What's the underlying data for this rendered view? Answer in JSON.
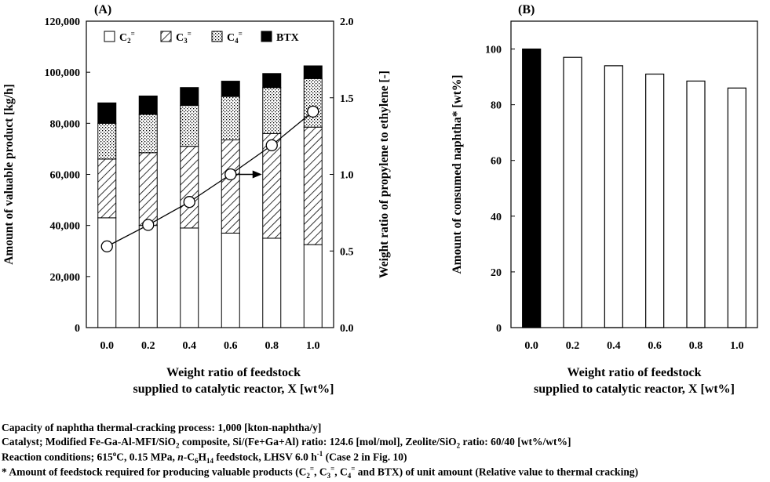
{
  "chart_data": [
    {
      "panel_label": "(A)",
      "type": "bar",
      "stacked": true,
      "categories": [
        "0.0",
        "0.2",
        "0.4",
        "0.6",
        "0.8",
        "1.0"
      ],
      "series": [
        {
          "name": "C2=",
          "label_base": "C",
          "label_sub": "2",
          "label_sup": "=",
          "pattern": "white",
          "values": [
            43000,
            40000,
            39000,
            37000,
            35000,
            32500
          ]
        },
        {
          "name": "C3=",
          "label_base": "C",
          "label_sub": "3",
          "label_sup": "=",
          "pattern": "hatch",
          "values": [
            23000,
            28500,
            32000,
            36500,
            41000,
            46000
          ]
        },
        {
          "name": "C4=",
          "label_base": "C",
          "label_sub": "4",
          "label_sup": "=",
          "pattern": "dots",
          "values": [
            14000,
            15000,
            16000,
            17000,
            18000,
            19000
          ]
        },
        {
          "name": "BTX",
          "label_base": "BTX",
          "label_sub": "",
          "label_sup": "",
          "pattern": "black",
          "values": [
            8000,
            7200,
            7000,
            6000,
            5500,
            5000
          ]
        }
      ],
      "ylabel": "Amount of valuable product [kg/h]",
      "ylim": [
        0,
        120000
      ],
      "yticks": [
        "0",
        "20,000",
        "40,000",
        "60,000",
        "80,000",
        "100,000",
        "120,000"
      ],
      "y2label": "Weight ratio of propylene to ethylene [-]",
      "y2lim": [
        0,
        2.0
      ],
      "y2ticks": [
        "0.0",
        "0.5",
        "1.0",
        "1.5",
        "2.0"
      ],
      "line_series": {
        "values": [
          0.53,
          0.67,
          0.82,
          1.0,
          1.19,
          1.41
        ]
      },
      "xlabel_lines": [
        "Weight ratio of feedstock",
        "supplied to catalytic reactor, X [wt%]"
      ],
      "legend_position": "top"
    },
    {
      "panel_label": "(B)",
      "type": "bar",
      "categories": [
        "0.0",
        "0.2",
        "0.4",
        "0.6",
        "0.8",
        "1.0"
      ],
      "values": [
        100,
        97,
        94,
        91,
        88.5,
        86
      ],
      "highlight_first": true,
      "ylabel": "Amount of consumed naphtha* [wt%]",
      "ylim": [
        0,
        110
      ],
      "yticks": [
        "0",
        "20",
        "40",
        "60",
        "80",
        "100"
      ],
      "xlabel_lines": [
        "Weight ratio of feedstock",
        "supplied to catalytic reactor, X [wt%]"
      ]
    }
  ],
  "notes": {
    "line1": "Capacity of naphtha thermal-cracking process: 1,000 [kton-naphtha/y]",
    "line2_a": "Catalyst; Modified Fe-Ga-Al-MFI/SiO",
    "line2_b": "2",
    "line2_c": " composite, Si/(Fe+Ga+Al) ratio: 124.6 [mol/mol], Zeolite/SiO",
    "line2_d": "2",
    "line2_e": " ratio: 60/40 [wt%/wt%]",
    "line3_a": "Reaction conditions; 615",
    "line3_b": "o",
    "line3_c": "C, 0.15 MPa, ",
    "line3_d": "n",
    "line3_e": "-C",
    "line3_f": "6",
    "line3_g": "H",
    "line3_h": "14",
    "line3_i": " feedstock, LHSV 6.0 h",
    "line3_j": "-1",
    "line3_k": " (Case 2 in Fig. 10)",
    "line4_a": "* Amount of feedstock required for producing valuable products (C",
    "line4_b": "2",
    "line4_c": "=",
    "line4_d": ", C",
    "line4_e": "3",
    "line4_f": "=",
    "line4_g": ", C",
    "line4_h": "4",
    "line4_i": "=",
    "line4_j": " and BTX) of unit amount (Relative value to thermal cracking)"
  },
  "colors": {
    "bar_fill": "#ffffff",
    "bar_stroke": "#000000",
    "highlight": "#000000"
  }
}
